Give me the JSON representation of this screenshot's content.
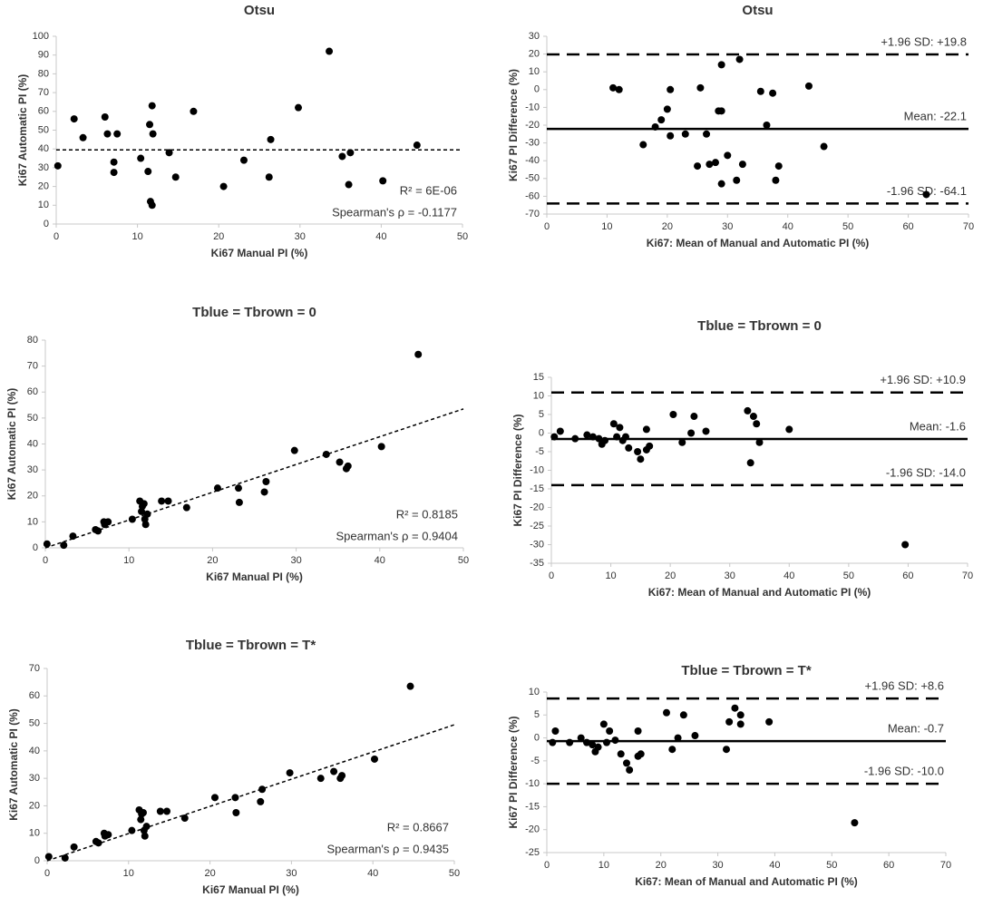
{
  "chart_data": [
    {
      "type": "scatter",
      "title": "Otsu",
      "x_label": "Ki67 Manual PI (%)",
      "y_label": "Ki67 Automatic PI (%)",
      "x": [
        0.2,
        2.2,
        3.3,
        6,
        6.3,
        7.1,
        7.1,
        7.5,
        10.4,
        11.3,
        11.5,
        11.6,
        11.8,
        11.8,
        11.9,
        13.9,
        14.7,
        16.9,
        20.6,
        23.1,
        26.2,
        26.4,
        29.8,
        33.6,
        35.2,
        36.2,
        36,
        40.2,
        44.4
      ],
      "values": [
        31,
        56,
        46,
        57,
        48,
        33,
        27.5,
        48,
        35,
        28,
        53,
        12,
        10,
        63,
        48,
        38,
        25,
        60,
        20,
        34,
        25,
        45,
        62,
        92,
        36,
        38,
        21,
        23,
        42
      ],
      "color": "#000000",
      "xlim": [
        0,
        50
      ],
      "ylim": [
        0,
        100
      ],
      "xticks": [
        0,
        10,
        20,
        30,
        40,
        50
      ],
      "yticks": [
        0,
        10,
        20,
        30,
        40,
        50,
        60,
        70,
        80,
        90,
        100
      ],
      "trendline": {
        "x": [
          0,
          50
        ],
        "y": [
          39.5,
          39.5
        ]
      },
      "annotations": [
        "R² = 6E-06",
        "Spearman's ρ = -0.1177"
      ]
    },
    {
      "type": "scatter",
      "title": "Otsu",
      "x_label": "Ki67: Mean of Manual and Automatic PI (%)",
      "y_label": "Ki67 PI Difference (%)",
      "x": [
        11,
        12,
        16,
        18,
        19,
        20,
        20.5,
        20.5,
        23,
        25,
        25.5,
        26.5,
        27,
        28,
        28.5,
        29,
        29,
        29,
        30,
        31.5,
        32,
        32.5,
        35.5,
        36.5,
        37.5,
        38,
        38.5,
        43.5,
        46,
        63
      ],
      "values": [
        1,
        0,
        -31,
        -21,
        -17,
        -11,
        0,
        -26,
        -25,
        -43,
        1,
        -25,
        -42,
        -41,
        -12,
        -12,
        -53,
        14,
        -37,
        -51,
        17,
        -42,
        -1,
        -20,
        -2,
        -51,
        -43,
        2,
        -32,
        -59
      ],
      "color": "#000000",
      "xlim": [
        0,
        70
      ],
      "ylim": [
        -70,
        30
      ],
      "xticks": [
        0,
        10,
        20,
        30,
        40,
        50,
        60,
        70
      ],
      "yticks": [
        -70,
        -60,
        -50,
        -40,
        -30,
        -20,
        -10,
        0,
        10,
        20,
        30
      ],
      "reference_lines": [
        {
          "value": 19.8,
          "label": "+1.96 SD: +19.8",
          "style": "dashed"
        },
        {
          "value": -22.1,
          "label": "Mean: -22.1",
          "style": "solid"
        },
        {
          "value": -64.1,
          "label": "-1.96 SD: -64.1",
          "style": "dashed"
        }
      ]
    },
    {
      "type": "scatter",
      "title": "Tblue = Tbrown = 0",
      "x_label": "Ki67 Manual PI (%)",
      "y_label": "Ki67 Automatic PI (%)",
      "x": [
        0.2,
        2.2,
        3.3,
        6,
        6.3,
        7,
        7.1,
        7.5,
        10.4,
        11.3,
        11.5,
        11.6,
        11.8,
        11.9,
        12,
        12.2,
        13.9,
        14.7,
        16.9,
        20.6,
        23.1,
        23.2,
        26.2,
        26.4,
        29.8,
        33.6,
        35.2,
        36,
        36.2,
        40.2,
        44.6
      ],
      "values": [
        1.5,
        1,
        4.5,
        7,
        6.5,
        10,
        9,
        10,
        11,
        18,
        14,
        16,
        17,
        11,
        9,
        13,
        18,
        18,
        15.5,
        23,
        23,
        17.5,
        21.5,
        25.5,
        37.5,
        36,
        33,
        30.5,
        31.5,
        39,
        74.5
      ],
      "color": "#000000",
      "xlim": [
        0,
        50
      ],
      "ylim": [
        0,
        80
      ],
      "xticks": [
        0,
        10,
        20,
        30,
        40,
        50
      ],
      "yticks": [
        0,
        10,
        20,
        30,
        40,
        50,
        60,
        70,
        80
      ],
      "trendline": {
        "x": [
          0,
          50
        ],
        "y": [
          0,
          53.5
        ]
      },
      "annotations": [
        "R² = 0.8185",
        "Spearman's ρ = 0.9404"
      ]
    },
    {
      "type": "scatter",
      "title": "Tblue = Tbrown = 0",
      "x_label": "Ki67: Mean of Manual and Automatic PI (%)",
      "y_label": "Ki67 PI Difference  (%)",
      "x": [
        0.5,
        1.5,
        4,
        6,
        7,
        8,
        8.5,
        9,
        10.5,
        11,
        11.5,
        12,
        12.5,
        13,
        14.5,
        15,
        16,
        16,
        16.5,
        20.5,
        22,
        23.5,
        24,
        26,
        33,
        33.5,
        34,
        34.5,
        35,
        40,
        59.5
      ],
      "values": [
        -1,
        0.5,
        -1.5,
        -0.5,
        -1,
        -1.5,
        -3,
        -2,
        2.5,
        -1,
        1.5,
        -2,
        -1,
        -4,
        -5,
        -7,
        -4.5,
        1,
        -3.5,
        5,
        -2.5,
        0,
        4.5,
        0.5,
        6,
        -8,
        4.5,
        2.5,
        -2.5,
        1,
        -30
      ],
      "color": "#000000",
      "xlim": [
        0,
        70
      ],
      "ylim": [
        -35,
        15
      ],
      "xticks": [
        0,
        10,
        20,
        30,
        40,
        50,
        60,
        70
      ],
      "yticks": [
        -35,
        -30,
        -25,
        -20,
        -15,
        -10,
        -5,
        0,
        5,
        10,
        15
      ],
      "reference_lines": [
        {
          "value": 10.9,
          "label": "+1.96 SD: +10.9",
          "style": "dashed"
        },
        {
          "value": -1.6,
          "label": "Mean: -1.6",
          "style": "solid"
        },
        {
          "value": -14.0,
          "label": "-1.96 SD: -14.0",
          "style": "dashed"
        }
      ]
    },
    {
      "type": "scatter",
      "title": "Tblue = Tbrown = T*",
      "x_label": "Ki67 Manual PI (%)",
      "y_label": "Ki67 Automatic PI (%)",
      "x": [
        0.2,
        2.2,
        3.3,
        6,
        6.3,
        7,
        7.1,
        7.5,
        10.4,
        11.3,
        11.5,
        11.6,
        11.8,
        11.9,
        12,
        12.2,
        13.9,
        14.7,
        16.9,
        20.6,
        23.1,
        23.2,
        26.2,
        26.4,
        29.8,
        33.6,
        35.2,
        36,
        36.2,
        40.2,
        44.6
      ],
      "values": [
        1.5,
        1,
        5,
        7,
        6.5,
        10,
        9,
        9.5,
        11,
        18.5,
        15,
        17,
        17.5,
        11,
        9,
        12.5,
        18,
        18,
        15.5,
        23,
        23,
        17.5,
        21.5,
        26,
        32,
        30,
        32.5,
        30,
        31,
        37,
        63.5
      ],
      "color": "#000000",
      "xlim": [
        0,
        50
      ],
      "ylim": [
        0,
        70
      ],
      "xticks": [
        0,
        10,
        20,
        30,
        40,
        50
      ],
      "yticks": [
        0,
        10,
        20,
        30,
        40,
        50,
        60,
        70
      ],
      "trendline": {
        "x": [
          0,
          50
        ],
        "y": [
          0,
          49.5
        ]
      },
      "annotations": [
        "R² = 0.8667",
        "Spearman's ρ = 0.9435"
      ]
    },
    {
      "type": "scatter",
      "title": "Tblue = Tbrown = T*",
      "x_label": "Ki67: Mean of Manual and Automatic PI (%)",
      "y_label": "Ki67 PI Difference  (%)",
      "x": [
        1,
        1.5,
        4,
        6,
        7,
        8,
        8.5,
        9,
        10,
        10.5,
        11,
        12,
        13,
        14,
        14.5,
        16,
        16,
        16.5,
        21,
        22,
        23,
        24,
        26,
        31.5,
        32,
        33,
        34,
        34,
        39,
        54
      ],
      "values": [
        -1,
        1.5,
        -1,
        0,
        -1,
        -1.5,
        -3,
        -2,
        3,
        -1,
        1.5,
        -0.5,
        -3.5,
        -5.5,
        -7,
        -4,
        1.5,
        -3.5,
        5.5,
        -2.5,
        0,
        5,
        0.5,
        -2.5,
        3.5,
        6.5,
        5,
        3,
        3.5,
        -18.5
      ],
      "color": "#000000",
      "xlim": [
        0,
        70
      ],
      "ylim": [
        -25,
        10
      ],
      "xticks": [
        0,
        10,
        20,
        30,
        40,
        50,
        60,
        70
      ],
      "yticks": [
        -25,
        -20,
        -15,
        -10,
        -5,
        0,
        5,
        10
      ],
      "reference_lines": [
        {
          "value": 8.6,
          "label": "+1.96 SD: +8.6",
          "style": "dashed"
        },
        {
          "value": -0.7,
          "label": "Mean: -0.7",
          "style": "solid"
        },
        {
          "value": -10.0,
          "label": "-1.96 SD: -10.0",
          "style": "dashed"
        }
      ]
    }
  ]
}
